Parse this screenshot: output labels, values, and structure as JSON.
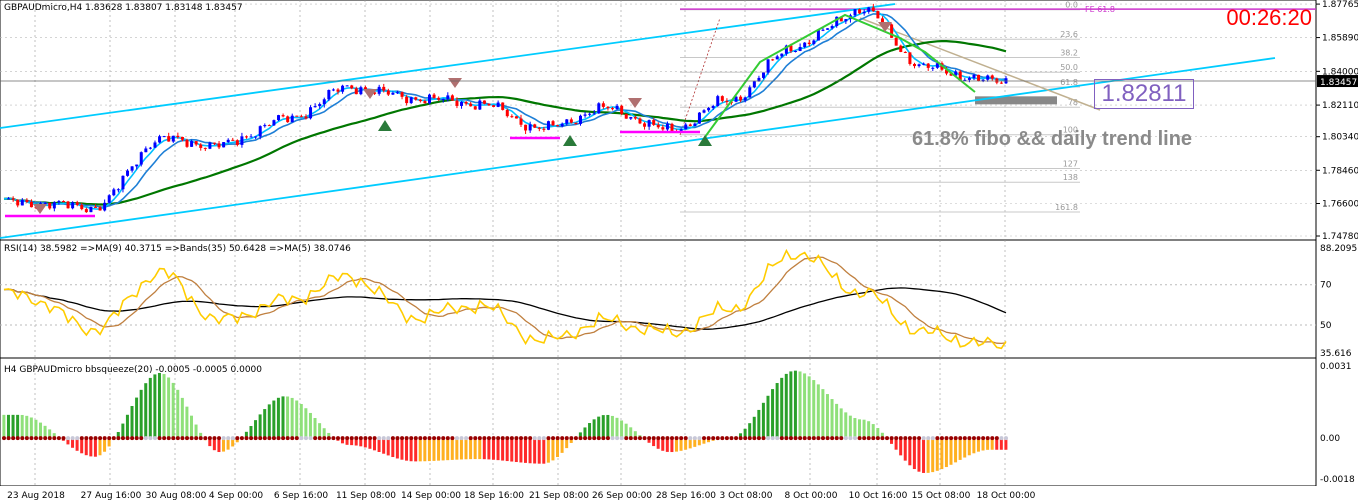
{
  "main_header": "GBPAUDmicro,H4  1.83628 1.83807 1.83148 1.83457",
  "timer": "00:26:20",
  "price_box": "1.82811",
  "annotation": "61.8% fibo &&  daily trend line",
  "current_price_label": "1.83457",
  "fe_label": "FE 61.8",
  "price_ticks": [
    "1.87765",
    "1.85890",
    "1.84000",
    "1.82110",
    "1.80340",
    "1.78460",
    "1.76600",
    "1.74780"
  ],
  "fib_levels": [
    "0.0",
    "23.6",
    "38.2",
    "50.0",
    "61.8",
    "78",
    "100",
    "127",
    "138",
    "161.8"
  ],
  "rsi_header": "RSI(14) 38.5982  =>MA(9) 40.3715  =>Bands(35) 50.6428  =>MA(5) 38.0746",
  "rsi_ticks": [
    "88.2095",
    "70",
    "50",
    "35.616"
  ],
  "bbs_header": "H4 GBPAUDmicro bbsqueeze(20) -0.0005 -0.0005 0.0000",
  "bbs_ticks": [
    "0.0031",
    "0.00",
    "-0.0018"
  ],
  "time_labels": [
    "23 Aug 2018",
    "27 Aug 16:00",
    "30 Aug 08:00",
    "4 Sep 00:00",
    "6 Sep 16:00",
    "11 Sep 08:00",
    "14 Sep 00:00",
    "18 Sep 16:00",
    "21 Sep 08:00",
    "26 Sep 00:00",
    "28 Sep 16:00",
    "3 Oct 08:00",
    "8 Oct 00:00",
    "10 Oct 16:00",
    "15 Oct 08:00",
    "18 Oct 00:00"
  ],
  "chart_data": {
    "type": "line",
    "symbol": "GBPAUDmicro",
    "timeframe": "H4",
    "ohlc_last": {
      "open": 1.83628,
      "high": 1.83807,
      "low": 1.83148,
      "close": 1.83457
    },
    "ylim": [
      1.7478,
      1.8777
    ],
    "price_anchor_points": [
      {
        "x": "23 Aug 2018",
        "y": 1.7665
      },
      {
        "x": "27 Aug 16:00",
        "y": 1.764
      },
      {
        "x": "30 Aug 08:00",
        "y": 1.802
      },
      {
        "x": "4 Sep 00:00",
        "y": 1.7985
      },
      {
        "x": "6 Sep 16:00",
        "y": 1.813
      },
      {
        "x": "11 Sep 08:00",
        "y": 1.831
      },
      {
        "x": "14 Sep 00:00",
        "y": 1.825
      },
      {
        "x": "18 Sep 16:00",
        "y": 1.822
      },
      {
        "x": "21 Sep 08:00",
        "y": 1.808
      },
      {
        "x": "26 Sep 00:00",
        "y": 1.819
      },
      {
        "x": "28 Sep 16:00",
        "y": 1.807
      },
      {
        "x": "3 Oct 08:00",
        "y": 1.824
      },
      {
        "x": "8 Oct 00:00",
        "y": 1.854
      },
      {
        "x": "10 Oct 16:00",
        "y": 1.8745
      },
      {
        "x": "15 Oct 08:00",
        "y": 1.842
      },
      {
        "x": "18 Oct 00:00",
        "y": 1.8346
      }
    ],
    "rsi": {
      "period": 14,
      "value": 38.5982,
      "ma9": 40.3715,
      "bands35": 50.6428,
      "ma5": 38.0746,
      "ylim": [
        35.616,
        88.2095
      ],
      "anchor_points": [
        {
          "x": "23 Aug 2018",
          "y": 65
        },
        {
          "x": "27 Aug 16:00",
          "y": 48
        },
        {
          "x": "30 Aug 08:00",
          "y": 76
        },
        {
          "x": "4 Sep 00:00",
          "y": 52
        },
        {
          "x": "6 Sep 16:00",
          "y": 62
        },
        {
          "x": "11 Sep 08:00",
          "y": 74
        },
        {
          "x": "14 Sep 00:00",
          "y": 54
        },
        {
          "x": "18 Sep 16:00",
          "y": 60
        },
        {
          "x": "21 Sep 08:00",
          "y": 42
        },
        {
          "x": "26 Sep 00:00",
          "y": 52
        },
        {
          "x": "28 Sep 16:00",
          "y": 46
        },
        {
          "x": "3 Oct 08:00",
          "y": 58
        },
        {
          "x": "8 Oct 00:00",
          "y": 86
        },
        {
          "x": "10 Oct 16:00",
          "y": 66
        },
        {
          "x": "15 Oct 08:00",
          "y": 46
        },
        {
          "x": "18 Oct 00:00",
          "y": 40
        }
      ]
    },
    "bbsqueeze": {
      "period": 20,
      "values": [
        -0.0005,
        -0.0005,
        0.0
      ],
      "ylim": [
        -0.0018,
        0.0031
      ],
      "anchor_points": [
        {
          "x": "23 Aug 2018",
          "y": 0.001
        },
        {
          "x": "27 Aug 16:00",
          "y": -0.0008
        },
        {
          "x": "30 Aug 08:00",
          "y": 0.0028
        },
        {
          "x": "4 Sep 00:00",
          "y": -0.0006
        },
        {
          "x": "6 Sep 16:00",
          "y": 0.0018
        },
        {
          "x": "11 Sep 08:00",
          "y": -0.0003
        },
        {
          "x": "14 Sep 00:00",
          "y": -0.001
        },
        {
          "x": "18 Sep 16:00",
          "y": -0.0009
        },
        {
          "x": "21 Sep 08:00",
          "y": -0.0011
        },
        {
          "x": "26 Sep 00:00",
          "y": 0.001
        },
        {
          "x": "28 Sep 16:00",
          "y": -0.0006
        },
        {
          "x": "3 Oct 08:00",
          "y": 0.0
        },
        {
          "x": "8 Oct 00:00",
          "y": 0.0029
        },
        {
          "x": "10 Oct 16:00",
          "y": 0.0008
        },
        {
          "x": "15 Oct 08:00",
          "y": -0.0015
        },
        {
          "x": "18 Oct 00:00",
          "y": -0.0005
        }
      ]
    },
    "colors": {
      "up_candle": "#0000ff",
      "down_candle": "#ff0000",
      "channel": "#00ccff",
      "ma_fast": "#00bfff",
      "ma_mid": "#1e7fd6",
      "ma_slow": "#007700",
      "zigzag": "#33cc33",
      "fib": "#c8c8c8",
      "horizontal_line": "#cc33cc",
      "rsi": "#ffcc00",
      "rsi_ma": "#c08040",
      "rsi_bands": "#000000",
      "bbs_up": "#33cc33",
      "bbs_down": "#ff0000",
      "bbs_squeeze_dot": "#990000",
      "timer": "#ff0000",
      "price_box": "#8060c0"
    }
  }
}
